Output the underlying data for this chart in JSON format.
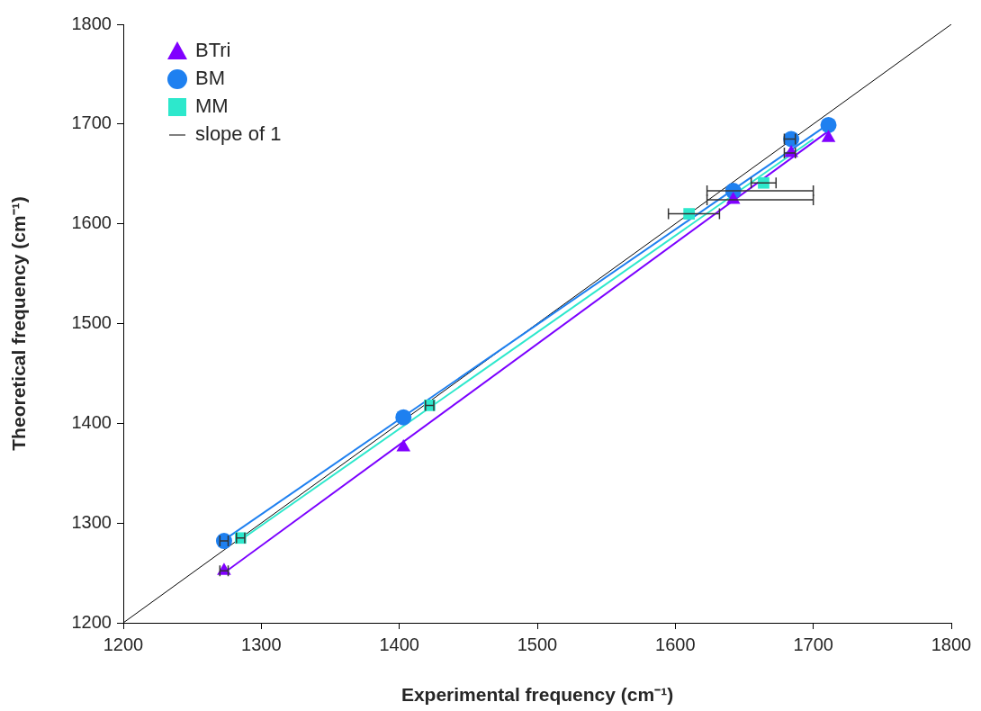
{
  "chart_data": {
    "type": "scatter",
    "xlabel": "Experimental frequency (cm⁻¹)",
    "ylabel": "Theoretical frequency (cm⁻¹)",
    "xlim": [
      1200,
      1800
    ],
    "ylim": [
      1200,
      1800
    ],
    "xticks": [
      1200,
      1300,
      1400,
      1500,
      1600,
      1700,
      1800
    ],
    "yticks": [
      1200,
      1300,
      1400,
      1500,
      1600,
      1700,
      1800
    ],
    "legend": "top left",
    "series": [
      {
        "name": "BTri",
        "marker": "triangle",
        "color": "#8000ff",
        "x": [
          1273,
          1403,
          1642,
          1684,
          1711
        ],
        "values": [
          1252,
          1376,
          1624,
          1671,
          1686
        ],
        "xerrors": [
          [
            1270,
            1276
          ],
          null,
          [
            1623,
            1700
          ],
          [
            1679,
            1687
          ],
          null
        ]
      },
      {
        "name": "BM",
        "marker": "circle",
        "color": "#1e80f0",
        "x": [
          1273,
          1403,
          1642,
          1684,
          1711
        ],
        "values": [
          1282,
          1406,
          1633,
          1685,
          1699
        ],
        "xerrors": [
          [
            1270,
            1276
          ],
          null,
          [
            1623,
            1700
          ],
          [
            1679,
            1687
          ],
          null
        ]
      },
      {
        "name": "MM",
        "marker": "square",
        "color": "#2de8cc",
        "x": [
          1285,
          1422,
          1610,
          1664
        ],
        "values": [
          1285,
          1418,
          1610,
          1641
        ],
        "xerrors": [
          [
            1282,
            1288
          ],
          [
            1419,
            1425
          ],
          [
            1595,
            1632
          ],
          [
            1655,
            1673
          ]
        ]
      },
      {
        "type": "line",
        "color": "#7b00ff",
        "x": [
          1273,
          1711
        ],
        "values": [
          1250,
          1693
        ]
      },
      {
        "type": "line",
        "color": "#1e80f0",
        "x": [
          1273,
          1711
        ],
        "values": [
          1283,
          1700
        ]
      },
      {
        "type": "line",
        "color": "#2de8cc",
        "x": [
          1285,
          1700
        ],
        "values": [
          1283,
          1685
        ]
      },
      {
        "name": "slope of 1",
        "type": "line",
        "marker": "none",
        "color": "#000000",
        "x": [
          1200,
          1800
        ],
        "values": [
          1200,
          1800
        ]
      }
    ]
  }
}
